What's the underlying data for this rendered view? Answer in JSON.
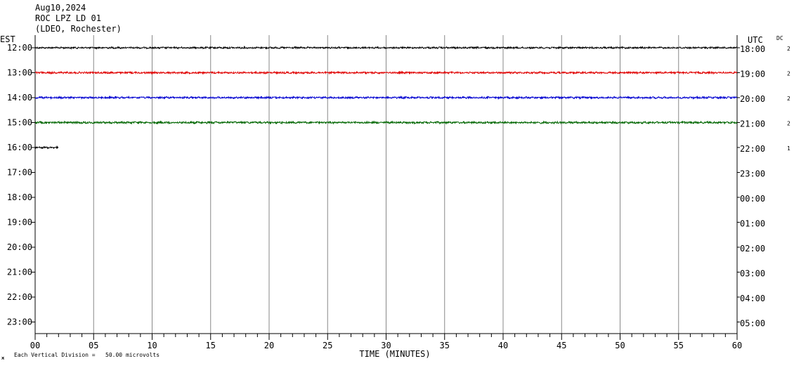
{
  "header": {
    "date": "Aug10,2024",
    "station": "ROC LPZ LD 01",
    "location": "(LDEO, Rochester)"
  },
  "footer": {
    "mark": "ж",
    "scale_note": "Each Vertical Division =   50.00 microvolts"
  },
  "chart_data": {
    "type": "line",
    "title": "",
    "xlabel": "TIME (MINUTES)",
    "ylabel": "",
    "xlim": [
      0,
      60
    ],
    "x_ticks": [
      0,
      5,
      10,
      15,
      20,
      25,
      30,
      35,
      40,
      45,
      50,
      55,
      60
    ],
    "x_tick_labels": [
      "00",
      "05",
      "10",
      "15",
      "20",
      "25",
      "30",
      "35",
      "40",
      "45",
      "50",
      "55",
      "60"
    ],
    "left_axis_title": "EST",
    "right_axis_title": "UTC",
    "dc_title": "DC",
    "left_labels": [
      "12:00",
      "13:00",
      "14:00",
      "15:00",
      "16:00",
      "17:00",
      "18:00",
      "19:00",
      "20:00",
      "21:00",
      "22:00",
      "23:00"
    ],
    "right_labels": [
      "18:00",
      "19:00",
      "20:00",
      "21:00",
      "22:00",
      "23:00",
      "00:00",
      "01:00",
      "02:00",
      "03:00",
      "04:00",
      "05:00"
    ],
    "dc_values": [
      "2",
      "2",
      "2",
      "2",
      "1",
      "",
      "",
      "",
      "",
      "",
      "",
      ""
    ],
    "vertical_grid": true,
    "series": [
      {
        "row": 0,
        "color": "#000000",
        "x_end": 60,
        "amplitude": 1.0
      },
      {
        "row": 1,
        "color": "#e00000",
        "x_end": 60,
        "amplitude": 1.1
      },
      {
        "row": 2,
        "color": "#0000d0",
        "x_end": 60,
        "amplitude": 1.1
      },
      {
        "row": 3,
        "color": "#006600",
        "x_end": 60,
        "amplitude": 1.2
      },
      {
        "row": 4,
        "color": "#000000",
        "x_end": 2,
        "amplitude": 1.0
      }
    ]
  }
}
